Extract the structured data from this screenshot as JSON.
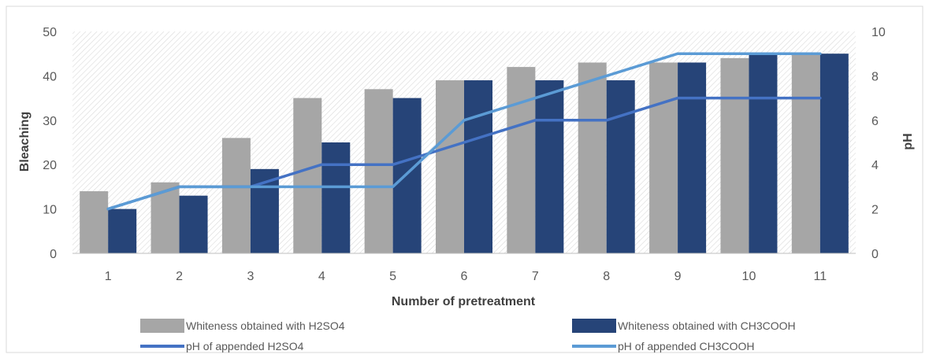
{
  "chart_data": {
    "type": "bar",
    "title": "",
    "xlabel": "Number of pretreatment",
    "ylabel": "Bleaching",
    "y2label": "pH",
    "categories": [
      "1",
      "2",
      "3",
      "4",
      "5",
      "6",
      "7",
      "8",
      "9",
      "10",
      "11"
    ],
    "ylim": [
      0,
      50
    ],
    "y2lim": [
      0,
      10
    ],
    "yticks": [
      "0",
      "10",
      "20",
      "30",
      "40",
      "50"
    ],
    "y2ticks": [
      "0",
      "2",
      "4",
      "6",
      "8",
      "10"
    ],
    "grid": false,
    "legend_position": "bottom",
    "series": [
      {
        "name": "Whiteness obtained with H2SO4",
        "type": "bar",
        "axis": "left",
        "color": "#a6a6a6",
        "values": [
          14,
          16,
          26,
          35,
          37,
          39,
          42,
          43,
          43,
          44,
          45
        ]
      },
      {
        "name": "Whiteness obtained with CH3COOH",
        "type": "bar",
        "axis": "left",
        "color": "#264478",
        "values": [
          10,
          13,
          19,
          25,
          35,
          39,
          39,
          39,
          43,
          45,
          45
        ]
      },
      {
        "name": "pH of appended H2SO4",
        "type": "line",
        "axis": "right",
        "color": "#4472c4",
        "values": [
          2,
          3,
          3,
          4,
          4,
          5,
          6,
          6,
          7,
          7,
          7
        ]
      },
      {
        "name": "pH of appended CH3COOH",
        "type": "line",
        "axis": "right",
        "color": "#5b9bd5",
        "values": [
          2,
          3,
          3,
          3,
          3,
          6,
          7,
          8,
          9,
          9,
          9
        ]
      }
    ]
  }
}
